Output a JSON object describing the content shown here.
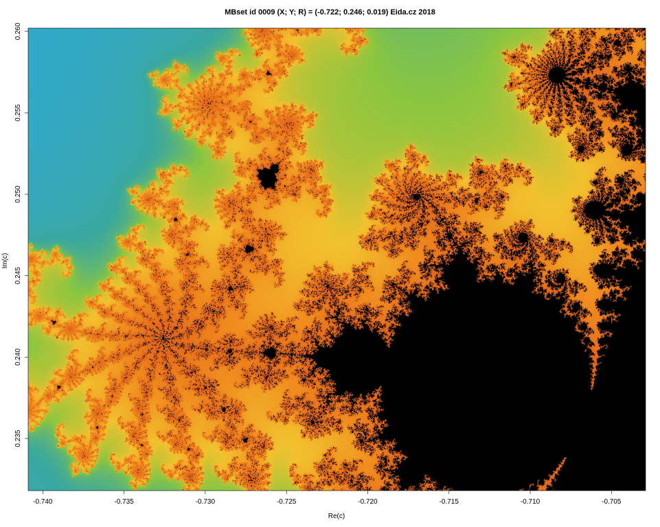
{
  "chart_data": {
    "type": "heatmap",
    "title": "MBset id 0009 (X; Y; R) = (-0.722; 0.246; 0.019) Eida.cz 2018",
    "xlabel": "Re(c)",
    "ylabel": "Im(c)",
    "xlim": [
      -0.7409,
      -0.7029
    ],
    "ylim": [
      0.2318,
      0.2602
    ],
    "x_ticks": [
      -0.74,
      -0.735,
      -0.73,
      -0.725,
      -0.72,
      -0.715,
      -0.71,
      -0.705
    ],
    "x_tick_labels": [
      "-0.740",
      "-0.735",
      "-0.730",
      "-0.725",
      "-0.720",
      "-0.715",
      "-0.710",
      "-0.705"
    ],
    "y_ticks": [
      0.235,
      0.24,
      0.245,
      0.25,
      0.255,
      0.26
    ],
    "y_tick_labels": [
      "0.235",
      "0.240",
      "0.245",
      "0.250",
      "0.255",
      "0.260"
    ],
    "center": {
      "X": -0.722,
      "Y": 0.246,
      "R": 0.019
    },
    "colors": {
      "background": "#ffffff",
      "set_interior": "#000000",
      "near_light": "#eaf4fc",
      "mid_blue": "#2fa8d8",
      "teal": "#3aa8a0",
      "green": "#8cc63f",
      "yellow": "#f2c12e",
      "orange": "#f08c1e"
    },
    "max_iterations": 220
  }
}
